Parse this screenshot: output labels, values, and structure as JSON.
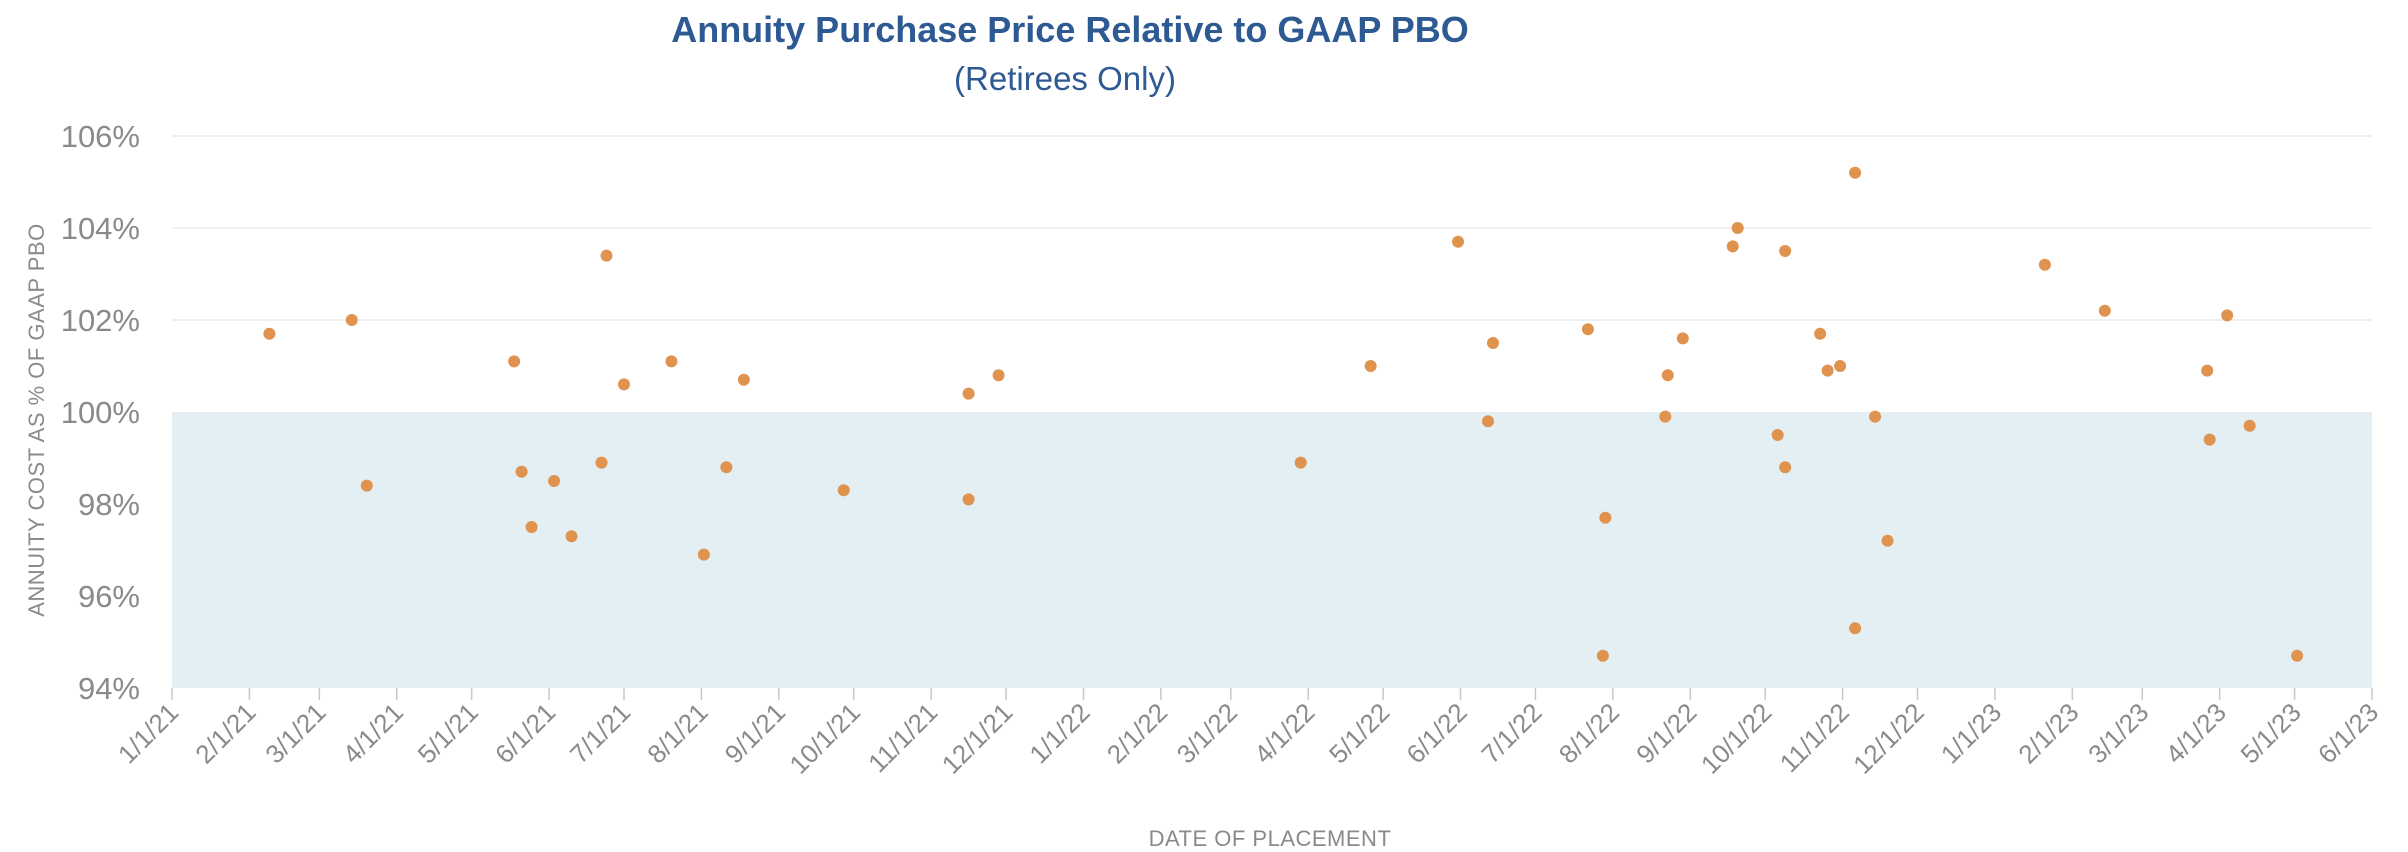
{
  "chart_data": {
    "type": "scatter",
    "title": "Annuity Purchase Price Relative to GAAP PBO",
    "subtitle": "(Retirees Only)",
    "xlabel": "DATE OF PLACEMENT",
    "ylabel": "ANNUITY COST AS % OF GAAP PBO",
    "x_tick_labels": [
      "1/1/21",
      "2/1/21",
      "3/1/21",
      "4/1/21",
      "5/1/21",
      "6/1/21",
      "7/1/21",
      "8/1/21",
      "9/1/21",
      "10/1/21",
      "11/1/21",
      "12/1/21",
      "1/1/22",
      "2/1/22",
      "3/1/22",
      "4/1/22",
      "5/1/22",
      "6/1/22",
      "7/1/22",
      "8/1/22",
      "9/1/22",
      "10/1/22",
      "11/1/22",
      "12/1/22",
      "1/1/23",
      "2/1/23",
      "3/1/23",
      "4/1/23",
      "5/1/23",
      "6/1/23"
    ],
    "y_tick_labels": [
      "94%",
      "96%",
      "98%",
      "100%",
      "102%",
      "104%",
      "106%"
    ],
    "xlim": [
      "1/1/21",
      "6/1/23"
    ],
    "ylim": [
      94,
      106
    ],
    "y_unit": "%",
    "grid": "horizontal",
    "shaded_band": {
      "from": 94,
      "to": 100,
      "color": "#e3eff2"
    },
    "colors": {
      "title": "#2e5a94",
      "point": "#e0924f",
      "axis_text": "#8a8a8a",
      "gridline": "#eaeaea"
    },
    "series": [
      {
        "points": [
          {
            "x": "2/9/21",
            "y": 101.7
          },
          {
            "x": "3/14/21",
            "y": 102.0
          },
          {
            "x": "3/20/21",
            "y": 98.4
          },
          {
            "x": "5/18/21",
            "y": 101.1
          },
          {
            "x": "5/21/21",
            "y": 98.7
          },
          {
            "x": "5/25/21",
            "y": 97.5
          },
          {
            "x": "6/3/21",
            "y": 98.5
          },
          {
            "x": "6/10/21",
            "y": 97.3
          },
          {
            "x": "6/22/21",
            "y": 98.9
          },
          {
            "x": "6/24/21",
            "y": 103.4
          },
          {
            "x": "7/1/21",
            "y": 100.6
          },
          {
            "x": "7/20/21",
            "y": 101.1
          },
          {
            "x": "8/2/21",
            "y": 96.9
          },
          {
            "x": "8/11/21",
            "y": 98.8
          },
          {
            "x": "8/18/21",
            "y": 100.7
          },
          {
            "x": "9/27/21",
            "y": 98.3
          },
          {
            "x": "11/16/21",
            "y": 100.4
          },
          {
            "x": "11/16/21",
            "y": 98.1
          },
          {
            "x": "11/28/21",
            "y": 100.8
          },
          {
            "x": "3/29/22",
            "y": 98.9
          },
          {
            "x": "4/26/22",
            "y": 101.0
          },
          {
            "x": "5/31/22",
            "y": 103.7
          },
          {
            "x": "6/12/22",
            "y": 99.8
          },
          {
            "x": "6/14/22",
            "y": 101.5
          },
          {
            "x": "7/22/22",
            "y": 101.8
          },
          {
            "x": "7/29/22",
            "y": 97.7
          },
          {
            "x": "7/28/22",
            "y": 94.7
          },
          {
            "x": "8/23/22",
            "y": 100.8
          },
          {
            "x": "8/22/22",
            "y": 99.9
          },
          {
            "x": "8/29/22",
            "y": 101.6
          },
          {
            "x": "9/18/22",
            "y": 103.6
          },
          {
            "x": "9/20/22",
            "y": 104.0
          },
          {
            "x": "10/6/22",
            "y": 99.5
          },
          {
            "x": "10/9/22",
            "y": 103.5
          },
          {
            "x": "10/9/22",
            "y": 98.8
          },
          {
            "x": "10/23/22",
            "y": 101.7
          },
          {
            "x": "10/26/22",
            "y": 100.9
          },
          {
            "x": "10/31/22",
            "y": 101.0
          },
          {
            "x": "11/6/22",
            "y": 105.2
          },
          {
            "x": "11/6/22",
            "y": 95.3
          },
          {
            "x": "11/14/22",
            "y": 99.9
          },
          {
            "x": "11/19/22",
            "y": 97.2
          },
          {
            "x": "1/21/23",
            "y": 103.2
          },
          {
            "x": "2/14/23",
            "y": 102.2
          },
          {
            "x": "3/27/23",
            "y": 100.9
          },
          {
            "x": "3/28/23",
            "y": 99.4
          },
          {
            "x": "4/4/23",
            "y": 102.1
          },
          {
            "x": "4/13/23",
            "y": 99.7
          },
          {
            "x": "5/2/23",
            "y": 94.7
          }
        ]
      }
    ]
  }
}
